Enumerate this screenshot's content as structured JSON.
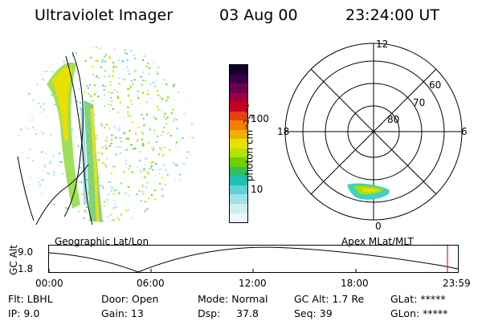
{
  "header": {
    "instrument": "Ultraviolet Imager",
    "date": "03 Aug 00",
    "time": "23:24:00 UT"
  },
  "colorbar": {
    "unit_label": "photon cm",
    "unit_exp1": "−2",
    "unit_mid": "s",
    "unit_exp2": "−1",
    "ticks": [
      "100",
      "10"
    ],
    "colors": [
      "#10002a",
      "#3a0040",
      "#6a0050",
      "#9b0040",
      "#c80020",
      "#e84010",
      "#f08000",
      "#f0b000",
      "#e8e000",
      "#b8e000",
      "#70d000",
      "#30c060",
      "#20c0b0",
      "#60d0d8",
      "#a0e0e8",
      "#d0eef0",
      "#eef8f8"
    ]
  },
  "map_left": {
    "caption": "Geographic Lat/Lon"
  },
  "polar_right": {
    "caption": "Apex MLat/MLT",
    "mlt_labels": {
      "top": "12",
      "left": "18",
      "right": "6",
      "bottom": "0"
    },
    "lat_labels": [
      "60",
      "70",
      "80"
    ]
  },
  "timeline": {
    "y_label": "GC Alt",
    "y_ticks": [
      "9.0",
      "1.8"
    ],
    "x_ticks": [
      "00:00",
      "06:00",
      "12:00",
      "18:00",
      "23:59"
    ]
  },
  "info": {
    "flt": "Flt:  LBHL",
    "ip": "IP:  9.0",
    "door": "Door:  Open",
    "gain": "Gain:  13",
    "mode": "Mode:  Normal",
    "dsp": "Dsp:     37.8",
    "gcalt": "GC Alt:  1.7 Re",
    "seq": "Seq:  39",
    "glat": "GLat:  *****",
    "glon": "GLon:  *****"
  }
}
